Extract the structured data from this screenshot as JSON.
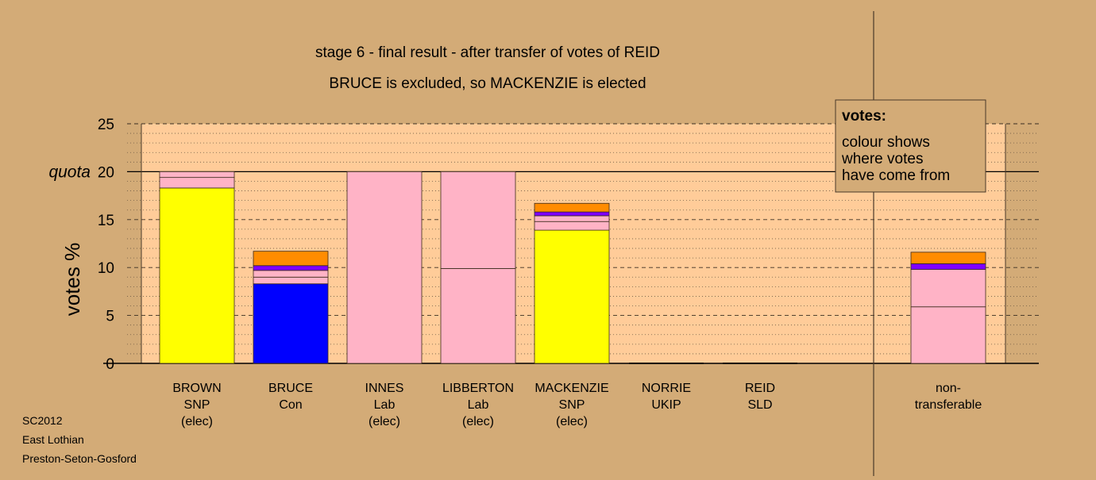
{
  "chart_data": {
    "type": "bar",
    "stacked": true,
    "title": "stage 6 - final result - after transfer of votes of REID",
    "subtitle": "BRUCE is excluded, so MACKENZIE is elected",
    "ylabel": "votes %",
    "ylim": [
      0,
      25
    ],
    "yticks": [
      0,
      5,
      10,
      15,
      20,
      25
    ],
    "quota": {
      "label": "quota",
      "value": 20
    },
    "grid": true,
    "categories": [
      {
        "lines": [
          "BROWN",
          "SNP",
          "(elec)"
        ]
      },
      {
        "lines": [
          "BRUCE",
          "Con"
        ]
      },
      {
        "lines": [
          "INNES",
          "Lab",
          "(elec)"
        ]
      },
      {
        "lines": [
          "LIBBERTON",
          "Lab",
          "(elec)"
        ]
      },
      {
        "lines": [
          "MACKENZIE",
          "SNP",
          "(elec)"
        ]
      },
      {
        "lines": [
          "NORRIE",
          "UKIP"
        ]
      },
      {
        "lines": [
          "REID",
          "SLD"
        ]
      },
      {
        "lines": [
          "non-",
          "transferable"
        ]
      }
    ],
    "bars": [
      [
        {
          "value": 18.3,
          "color": "#FFFF00"
        },
        {
          "value": 1.1,
          "color": "#FFB3C6"
        },
        {
          "value": 0.6,
          "color": "#FFB3C6"
        }
      ],
      [
        {
          "value": 8.3,
          "color": "#0000FF"
        },
        {
          "value": 0.7,
          "color": "#FFB3C6"
        },
        {
          "value": 0.7,
          "color": "#FFB3C6"
        },
        {
          "value": 0.5,
          "color": "#7F00FF"
        },
        {
          "value": 1.5,
          "color": "#FF8C00"
        }
      ],
      [
        {
          "value": 20.0,
          "color": "#FFB3C6"
        }
      ],
      [
        {
          "value": 9.9,
          "color": "#FFB3C6"
        },
        {
          "value": 10.1,
          "color": "#FFB3C6"
        }
      ],
      [
        {
          "value": 13.9,
          "color": "#FFFF00"
        },
        {
          "value": 0.9,
          "color": "#FFB3C6"
        },
        {
          "value": 0.6,
          "color": "#FFB3C6"
        },
        {
          "value": 0.4,
          "color": "#7F00FF"
        },
        {
          "value": 0.9,
          "color": "#FF8C00"
        }
      ],
      [],
      [],
      [
        {
          "value": 5.9,
          "color": "#FFB3C6"
        },
        {
          "value": 3.9,
          "color": "#FFB3C6"
        },
        {
          "value": 0.6,
          "color": "#7F00FF"
        },
        {
          "value": 1.2,
          "color": "#FF8C00"
        }
      ]
    ],
    "legend": {
      "title": "votes:",
      "lines": [
        "colour shows",
        "where votes",
        "have come from"
      ],
      "position": "top-right"
    }
  },
  "footer": [
    "SC2012",
    "East Lothian",
    "Preston-Seton-Gosford"
  ],
  "colors": {
    "background": "#D3AB77",
    "plot_area": "#FFCC99",
    "pink": "#FFB3C6",
    "yellow": "#FFFF00",
    "blue": "#0000FF",
    "purple": "#7F00FF",
    "orange": "#FF8C00"
  }
}
